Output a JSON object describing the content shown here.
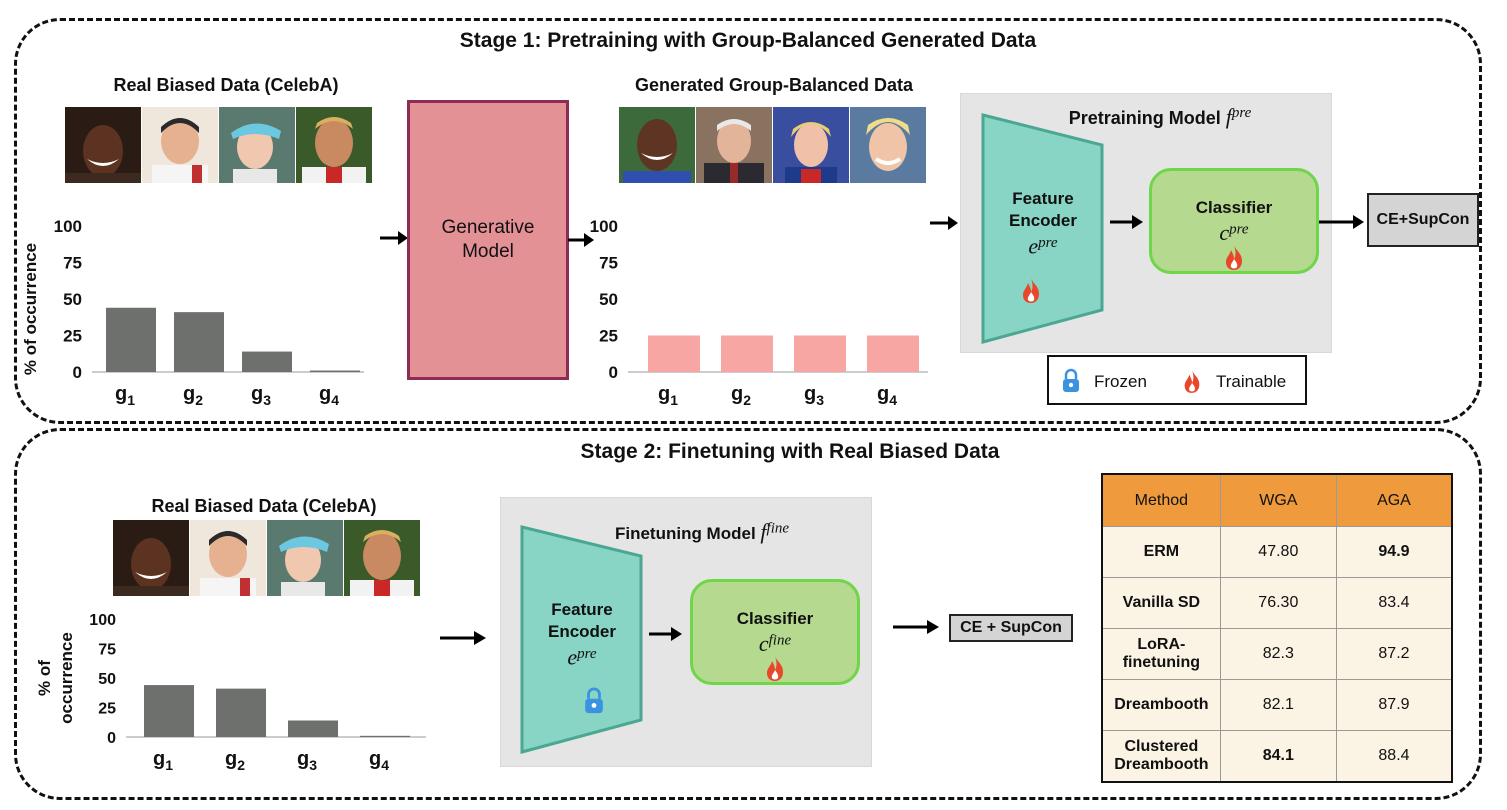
{
  "stage1": {
    "title": "Stage 1: Pretraining with Group-Balanced Generated Data",
    "real_data_title": "Real Biased Data (CelebA)",
    "generated_data_title": "Generated Group-Balanced Data",
    "generative_model_label_1": "Generative",
    "generative_model_label_2": "Model",
    "model_title": "Pretraining Model",
    "model_symbol": "f",
    "model_superscript": "pre",
    "encoder_label_1": "Feature",
    "encoder_label_2": "Encoder",
    "encoder_symbol": "e",
    "encoder_superscript": "pre",
    "classifier_label": "Classifier",
    "classifier_symbol": "c",
    "classifier_superscript": "pre",
    "loss_label": "CE+SupCon",
    "legend": {
      "frozen": "Frozen",
      "trainable": "Trainable"
    }
  },
  "stage2": {
    "title": "Stage 2: Finetuning with Real Biased Data",
    "real_data_title": "Real Biased Data (CelebA)",
    "model_title": "Finetuning Model",
    "model_symbol": "f",
    "model_superscript": "fine",
    "encoder_label_1": "Feature",
    "encoder_label_2": "Encoder",
    "encoder_symbol": "e",
    "encoder_superscript": "pre",
    "classifier_label": "Classifier",
    "classifier_symbol": "c",
    "classifier_superscript": "fine",
    "loss_label": "CE + SupCon"
  },
  "chart_data": [
    {
      "type": "bar",
      "categories": [
        "g1",
        "g2",
        "g3",
        "g4"
      ],
      "values": [
        44,
        41,
        14,
        1
      ],
      "ylabel": "% of occurrence",
      "yticks": [
        0,
        25,
        50,
        75,
        100
      ],
      "ylim": [
        0,
        100
      ],
      "color": "#6e706e"
    },
    {
      "type": "bar",
      "categories": [
        "g1",
        "g2",
        "g3",
        "g4"
      ],
      "values": [
        25,
        25,
        25,
        25
      ],
      "ylabel": "",
      "yticks": [
        0,
        25,
        50,
        75,
        100
      ],
      "ylim": [
        0,
        100
      ],
      "color": "#f8a6a3"
    },
    {
      "type": "bar",
      "categories": [
        "g1",
        "g2",
        "g3",
        "g4"
      ],
      "values": [
        44,
        41,
        14,
        1
      ],
      "ylabel": "% of occurrence",
      "yticks": [
        0,
        25,
        50,
        75,
        100
      ],
      "ylim": [
        0,
        100
      ],
      "color": "#6e706e"
    }
  ],
  "results_table": {
    "headers": [
      "Method",
      "WGA",
      "AGA"
    ],
    "rows": [
      {
        "method": "ERM",
        "wga": "47.80",
        "aga": "94.9"
      },
      {
        "method": "Vanilla SD",
        "wga": "76.30",
        "aga": "83.4"
      },
      {
        "method": "LoRA-finetuning",
        "wga": "82.3",
        "aga": "87.2"
      },
      {
        "method": "Dreambooth",
        "wga": "82.1",
        "aga": "87.9"
      },
      {
        "method": "Clustered Dreambooth",
        "wga": "84.1",
        "aga": "88.4"
      }
    ]
  },
  "colors": {
    "encoder": "#88d4c5",
    "encoder_border": "#4aa892",
    "classifier": "#b5d98f",
    "classifier_border": "#6fd54a",
    "generative_model": "#e49196",
    "table_header": "#ef9a3c",
    "table_body": "#fbf3e4",
    "flame": "#e8472a",
    "lock": "#3b93e0"
  },
  "icons": [
    "flame-icon",
    "lock-icon"
  ]
}
